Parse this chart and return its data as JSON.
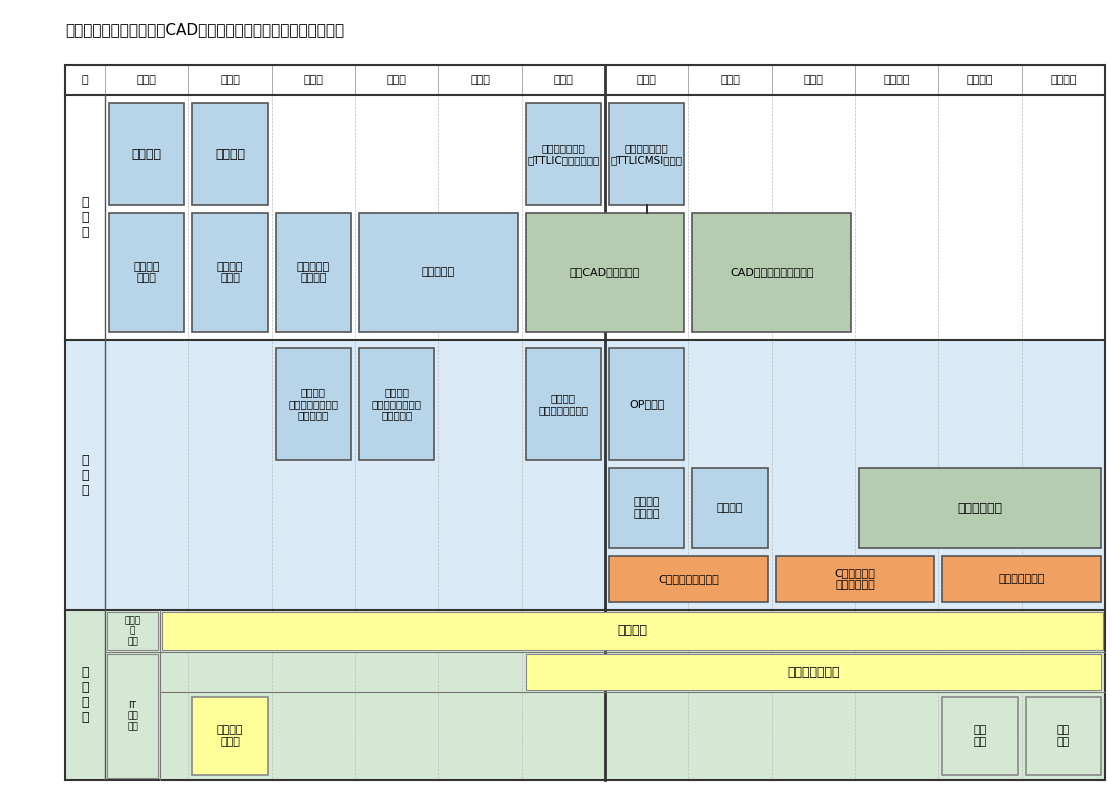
{
  "title": "電子機器科　電子技術・CADコース　１年間の訓練計画（標準）",
  "months": [
    "月",
    "１か月",
    "２か月",
    "３か月",
    "４か月",
    "５か月",
    "６か月",
    "７か月",
    "８か月",
    "９か月",
    "１０か月",
    "１１か月",
    "１２か月"
  ],
  "colors": {
    "light_blue_bg": "#daeaf6",
    "light_green_bg": "#d5e8d4",
    "light_yellow_bg": "#ffff99",
    "white_bg": "#ffffff",
    "box_blue": "#b8d4e8",
    "box_green": "#b5ccb0",
    "box_orange": "#f0a060",
    "border_dark": "#444444",
    "border_thin": "#999999",
    "text_dark": "#000000"
  }
}
